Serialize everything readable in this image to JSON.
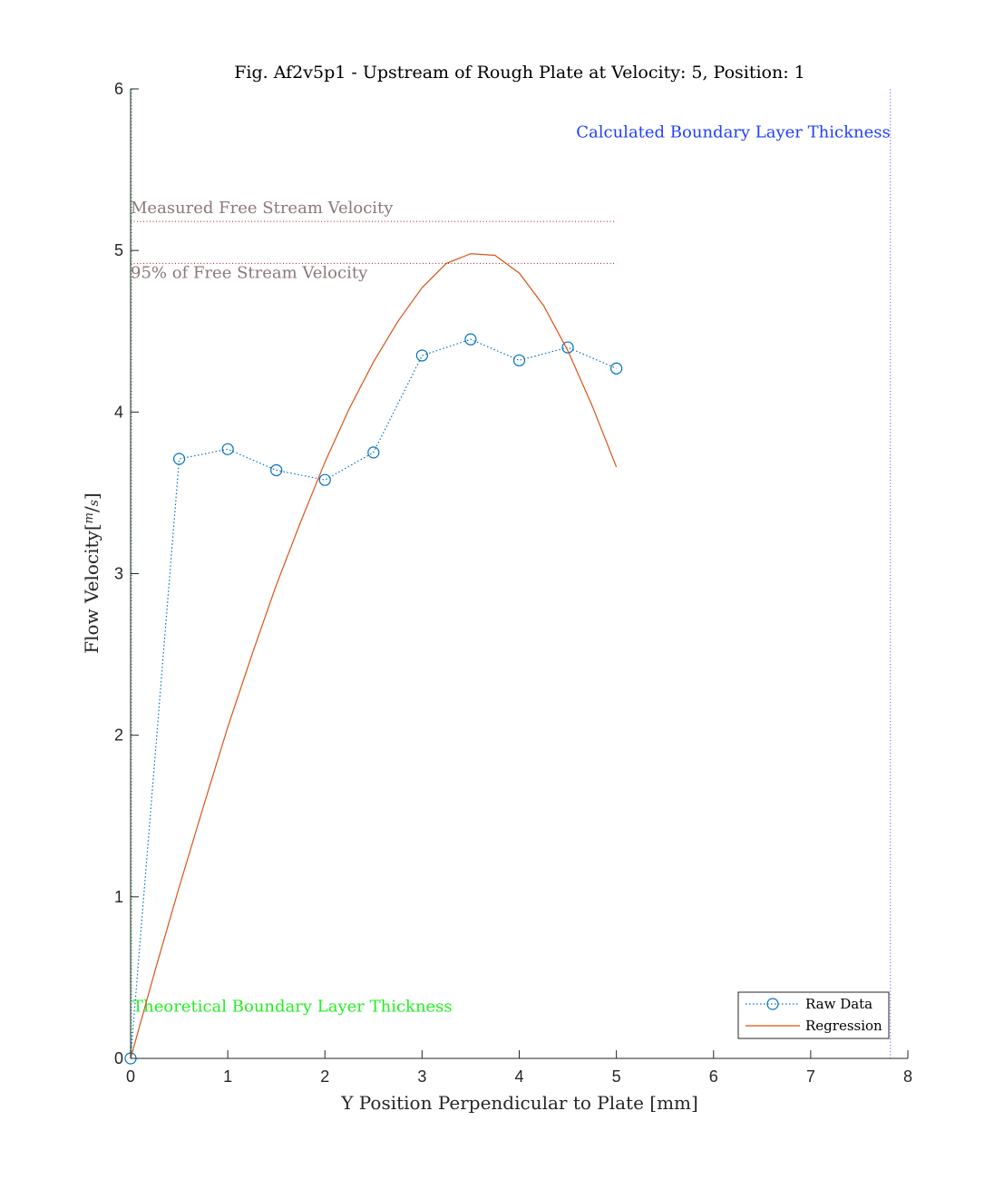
{
  "chart_data": {
    "type": "line",
    "title": "Fig. Af2v5p1 - Upstream of Rough Plate at Velocity: 5, Position: 1",
    "xlabel": "Y Position Perpendicular to Plate [mm]",
    "ylabel_main": "Flow Velocity",
    "ylabel_unit_num": "m",
    "ylabel_unit_den": "s",
    "xlim": [
      0,
      8
    ],
    "ylim": [
      0,
      6
    ],
    "x_ticks": [
      "0",
      "1",
      "2",
      "3",
      "4",
      "5",
      "6",
      "7",
      "8"
    ],
    "y_ticks": [
      "0",
      "1",
      "2",
      "3",
      "4",
      "5",
      "6"
    ],
    "grid": false,
    "legend_position": "bottom-right",
    "series": [
      {
        "name": "Raw Data",
        "style": "dotted-circle",
        "color": "#0072BD",
        "x": [
          0,
          0.5,
          1,
          1.5,
          2,
          2.5,
          3,
          3.5,
          4,
          4.5,
          5
        ],
        "y": [
          0,
          3.71,
          3.77,
          3.64,
          3.58,
          3.75,
          4.35,
          4.45,
          4.32,
          4.4,
          4.27
        ]
      },
      {
        "name": "Regression",
        "style": "solid",
        "color": "#D95319",
        "x": [
          0,
          0.25,
          0.5,
          0.75,
          1,
          1.25,
          1.5,
          1.75,
          2,
          2.25,
          2.5,
          2.75,
          3,
          3.25,
          3.5,
          3.75,
          4,
          4.25,
          4.5,
          4.75,
          5
        ],
        "y": [
          0,
          0.54,
          1.06,
          1.56,
          2.05,
          2.5,
          2.93,
          3.32,
          3.69,
          4.02,
          4.31,
          4.56,
          4.77,
          4.92,
          4.98,
          4.97,
          4.86,
          4.66,
          4.38,
          4.04,
          3.66
        ]
      }
    ],
    "reference_lines": [
      {
        "orientation": "horizontal",
        "value": 5.18,
        "x_end": 5,
        "color": "#A2142F"
      },
      {
        "orientation": "horizontal",
        "value": 4.92,
        "x_end": 5,
        "color": "#A2142F"
      },
      {
        "orientation": "vertical",
        "value": 7.82,
        "color": "#7E2FFF"
      },
      {
        "orientation": "vertical",
        "value": 0.01,
        "color": "#00B050"
      }
    ],
    "annotations": [
      {
        "text": "Calculated Boundary Layer Thickness",
        "x": 7.82,
        "y": 5.7,
        "color": "#1F3FFF",
        "anchor": "end"
      },
      {
        "text": "Measured Free Stream Velocity",
        "x": 0.0,
        "y": 5.23,
        "color": "#8C7878",
        "anchor": "start"
      },
      {
        "text": "95% of Free Stream Velocity",
        "x": 0.0,
        "y": 4.83,
        "color": "#8C7878",
        "anchor": "start"
      },
      {
        "text": "Theoretical Boundary Layer Thickness",
        "x": 0.02,
        "y": 0.29,
        "color": "#22EE22",
        "anchor": "start"
      }
    ]
  }
}
